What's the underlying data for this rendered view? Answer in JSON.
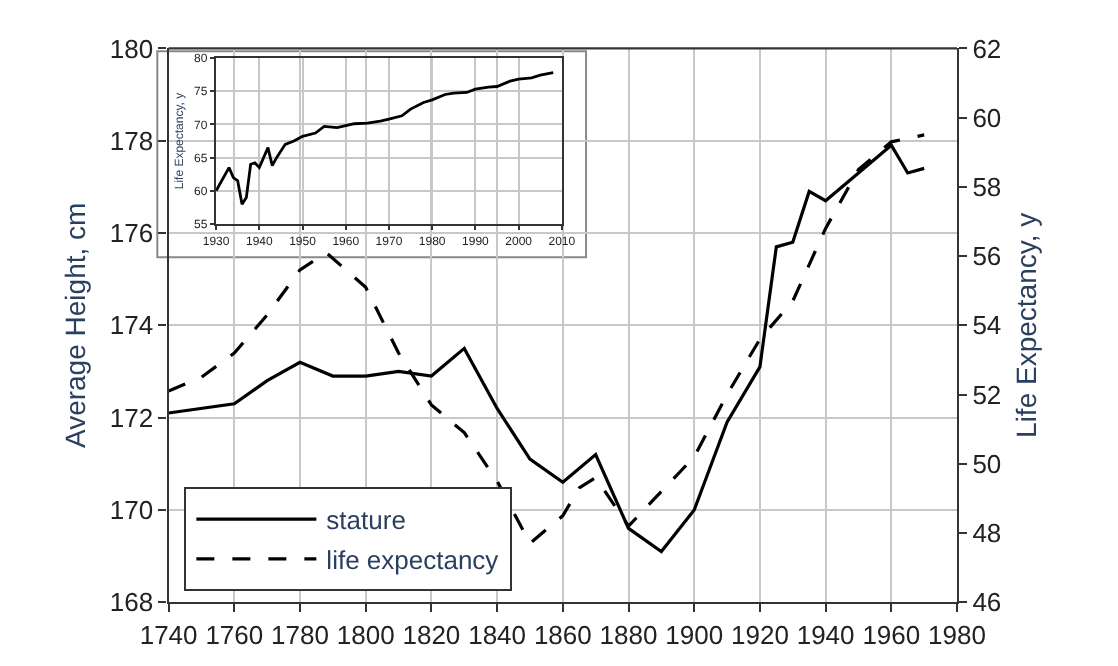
{
  "chart_data": [
    {
      "type": "line",
      "xlabel": null,
      "ylabel": "Average Height, cm",
      "y2label": "Life Expectancy, y",
      "xlim": [
        1740,
        1980
      ],
      "xticks": [
        1740,
        1760,
        1780,
        1800,
        1820,
        1840,
        1860,
        1880,
        1900,
        1920,
        1940,
        1960,
        1980
      ],
      "ylim": [
        168,
        180
      ],
      "yticks": [
        168,
        170,
        172,
        174,
        176,
        178,
        180
      ],
      "y2lim": [
        46,
        62
      ],
      "y2ticks": [
        46,
        48,
        50,
        52,
        54,
        56,
        58,
        60,
        62
      ],
      "grid": true,
      "legend": "bottom left",
      "marker": "none",
      "series": [
        {
          "name": "stature",
          "color": "#000000",
          "line_style": "solid",
          "x": [
            1740,
            1760,
            1770,
            1780,
            1790,
            1800,
            1810,
            1820,
            1830,
            1840,
            1850,
            1860,
            1870,
            1880,
            1890,
            1900,
            1910,
            1920,
            1925,
            1930,
            1935,
            1940,
            1950,
            1960,
            1965,
            1970
          ],
          "values": [
            172.1,
            172.3,
            172.8,
            173.2,
            172.9,
            172.9,
            173.0,
            172.9,
            173.5,
            172.2,
            171.1,
            170.6,
            171.2,
            169.6,
            169.1,
            170.0,
            171.9,
            173.1,
            175.7,
            175.8,
            176.9,
            176.7,
            177.3,
            177.9,
            177.3,
            177.4
          ]
        },
        {
          "name": "life expectancy",
          "color": "#000000",
          "line_style": "dashed",
          "axis": "y2",
          "x": [
            1740,
            1750,
            1760,
            1770,
            1780,
            1788,
            1800,
            1810,
            1820,
            1830,
            1840,
            1850,
            1860,
            1865,
            1870,
            1880,
            1890,
            1900,
            1910,
            1920,
            1930,
            1940,
            1950,
            1960,
            1970
          ],
          "values": [
            52.1,
            52.5,
            53.2,
            54.3,
            55.6,
            56.1,
            55.1,
            53.2,
            51.7,
            50.9,
            49.5,
            47.7,
            48.5,
            49.3,
            49.6,
            48.2,
            49.2,
            50.2,
            52.0,
            53.6,
            54.7,
            56.8,
            58.5,
            59.3,
            59.5
          ]
        }
      ]
    },
    {
      "type": "line",
      "ylabel": "Life Expectancy, y",
      "xlim": [
        1930,
        2010
      ],
      "xticks": [
        1930,
        1940,
        1950,
        1960,
        1970,
        1980,
        1990,
        2000,
        2010
      ],
      "ylim": [
        55,
        80
      ],
      "yticks": [
        55,
        60,
        65,
        70,
        75,
        80
      ],
      "grid": true,
      "marker": "none",
      "series": [
        {
          "color": "#000000",
          "line_style": "solid",
          "x": [
            1930,
            1933,
            1934,
            1935,
            1936,
            1937,
            1938,
            1939,
            1940,
            1942,
            1943,
            1944,
            1946,
            1948,
            1950,
            1953,
            1955,
            1958,
            1960,
            1962,
            1965,
            1968,
            1970,
            1973,
            1975,
            1978,
            1980,
            1983,
            1985,
            1988,
            1990,
            1993,
            1995,
            1998,
            2000,
            2003,
            2005,
            2008
          ],
          "values": [
            60,
            63.5,
            62,
            61.5,
            58,
            59,
            64,
            64.2,
            63.5,
            66.5,
            63.8,
            65,
            67,
            67.5,
            68.2,
            68.7,
            69.7,
            69.5,
            69.8,
            70.1,
            70.2,
            70.5,
            70.8,
            71.3,
            72.3,
            73.3,
            73.7,
            74.5,
            74.7,
            74.8,
            75.3,
            75.6,
            75.7,
            76.5,
            76.8,
            77.0,
            77.4,
            77.8
          ]
        }
      ]
    }
  ]
}
